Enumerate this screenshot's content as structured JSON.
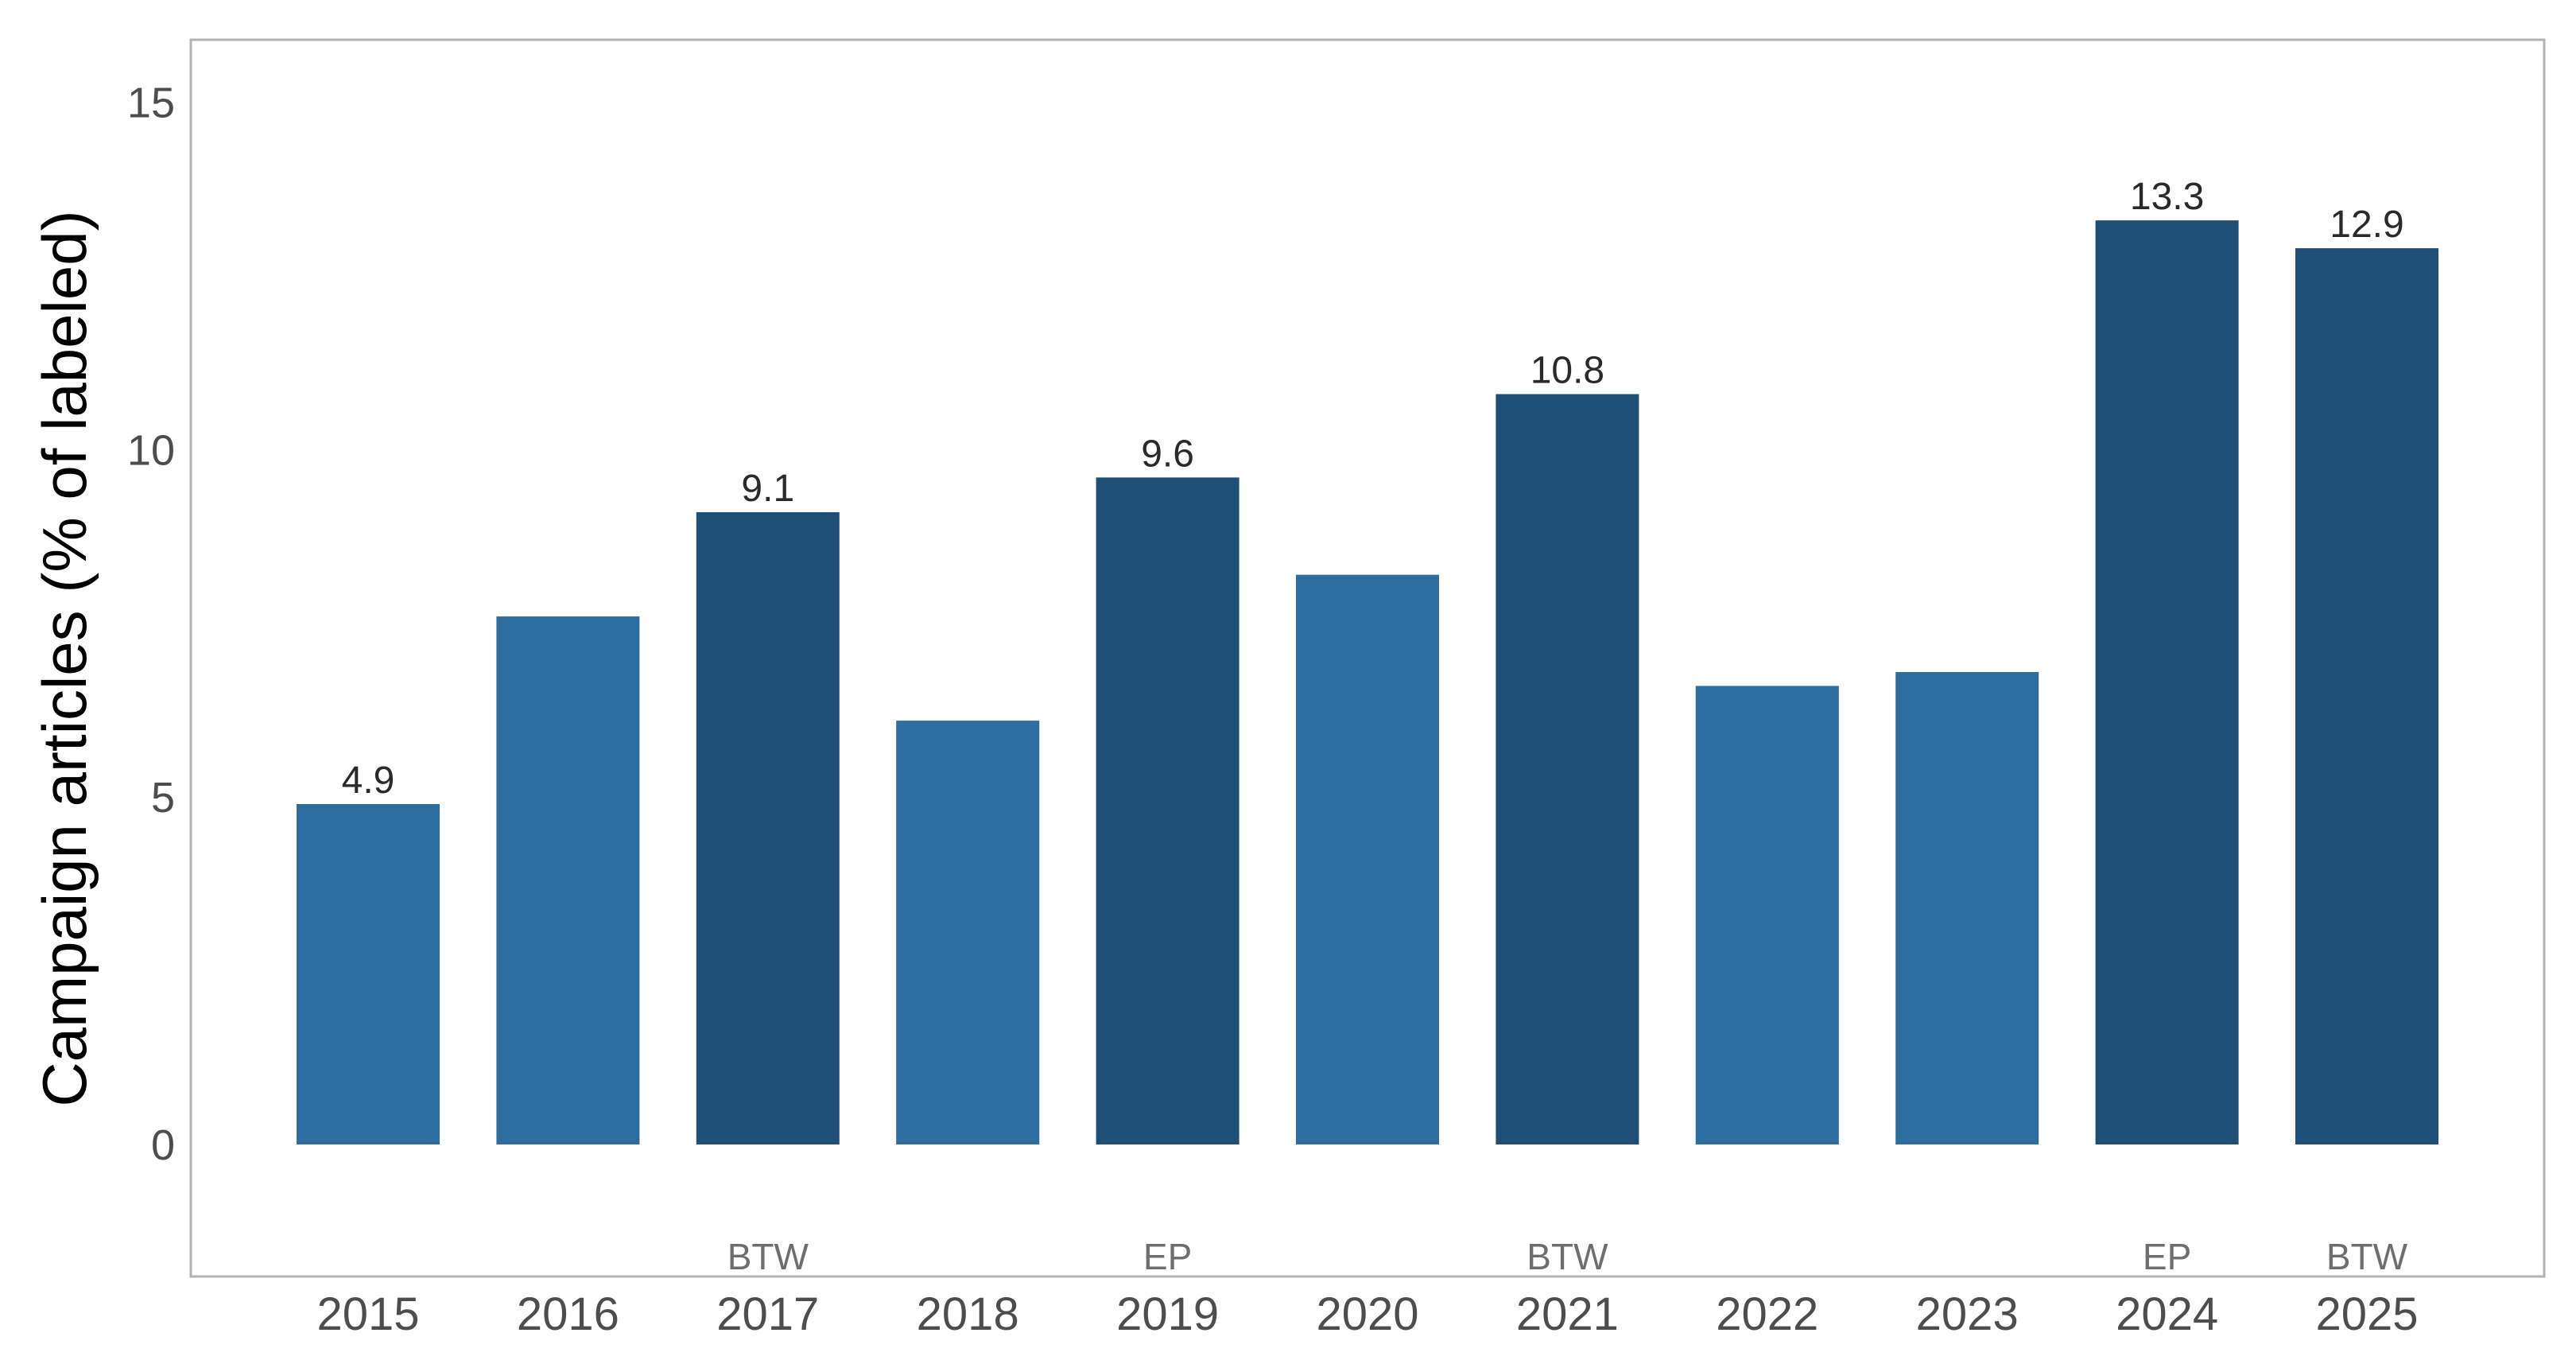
{
  "chart_data": {
    "type": "bar",
    "ylabel": "Campaign articles (% of labeled)",
    "xlabel": "",
    "ylim": [
      -1.9,
      15.9
    ],
    "yticks": [
      "0",
      "5",
      "10",
      "15"
    ],
    "grid": false,
    "categories": [
      "2015",
      "2016",
      "2017",
      "2018",
      "2019",
      "2020",
      "2021",
      "2022",
      "2023",
      "2024",
      "2025"
    ],
    "values": [
      4.9,
      7.6,
      9.1,
      6.1,
      9.6,
      8.2,
      10.8,
      6.6,
      6.8,
      13.3,
      12.9
    ],
    "value_labels": [
      "4.9",
      "",
      "9.1",
      "",
      "9.6",
      "",
      "10.8",
      "",
      "",
      "13.3",
      "12.9"
    ],
    "election_labels": [
      "",
      "",
      "BTW",
      "",
      "EP",
      "",
      "BTW",
      "",
      "",
      "EP",
      "BTW"
    ],
    "colors": {
      "election_year": "#1f4e76",
      "other_year": "#2e6d9e",
      "frame": "#b3b3b3"
    }
  }
}
